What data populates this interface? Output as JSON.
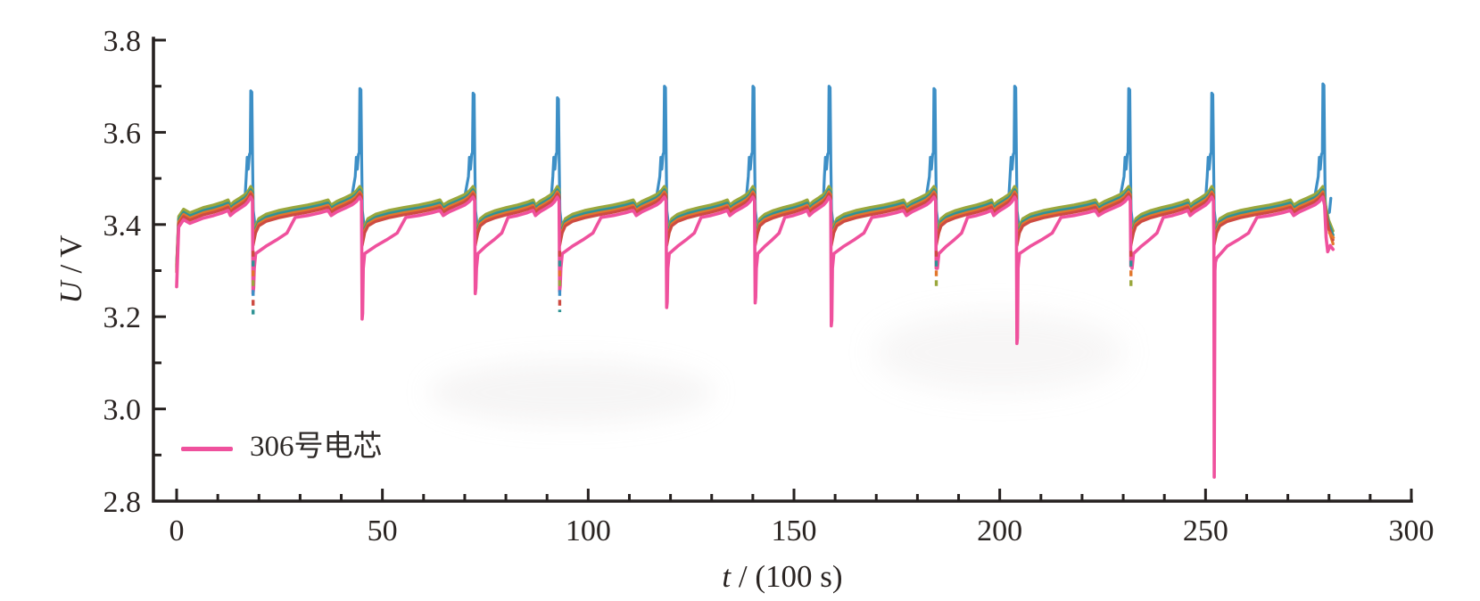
{
  "axes": {
    "ylabel_var": "U",
    "ylabel_rest": " / V",
    "xlabel_var": "t",
    "xlabel_rest": " / (100 s)"
  },
  "legend": {
    "label": "306号电芯"
  },
  "chart_data": {
    "type": "line",
    "title": "",
    "xlabel": "t / (100 s)",
    "ylabel": "U / V",
    "xlim": [
      -6,
      300
    ],
    "ylim": [
      2.8,
      3.8
    ],
    "x_ticks": [
      0,
      50,
      100,
      150,
      200,
      250,
      300
    ],
    "x_minor_step": 10,
    "y_ticks": [
      "2.8",
      "3.0",
      "3.2",
      "3.4",
      "3.6",
      "3.8"
    ],
    "y_minor_step": 0.1,
    "grid": false,
    "axis_color": "#262120",
    "legend": {
      "label": "306号电芯",
      "series": "pink",
      "line_color": "#ef519d",
      "position": "lower-left"
    },
    "series": [
      {
        "key": "blue",
        "color": "#3d8fc6",
        "offset": 0.0065,
        "role": "spiker"
      },
      {
        "key": "olive",
        "color": "#9aa73c",
        "offset": 0.01,
        "role": "bundle"
      },
      {
        "key": "teal",
        "color": "#2f9394",
        "offset": 0.003,
        "role": "bundle"
      },
      {
        "key": "orange",
        "color": "#e2772c",
        "offset": -0.0015,
        "role": "bundle"
      },
      {
        "key": "red",
        "color": "#cd4b42",
        "offset": -0.006,
        "role": "bundle"
      },
      {
        "key": "pink",
        "color": "#ef519d",
        "offset": -0.013,
        "role": "monitored",
        "label": "306号电芯"
      }
    ],
    "waveform": [
      [
        0,
        3.388
      ],
      [
        0.03,
        3.403
      ],
      [
        0.1,
        3.4125
      ],
      [
        0.22,
        3.4205
      ],
      [
        0.36,
        3.427
      ],
      [
        0.5,
        3.4325
      ],
      [
        0.62,
        3.4385
      ],
      [
        0.695,
        3.4435
      ],
      [
        0.725,
        3.4325
      ],
      [
        0.78,
        3.4405
      ],
      [
        0.86,
        3.4485
      ],
      [
        0.925,
        3.4555
      ],
      [
        0.965,
        3.4625
      ],
      [
        1,
        3.4725
      ]
    ],
    "start": {
      "t": 0,
      "v_pink": 3.265,
      "v_bundle": 3.303
    },
    "end": {
      "t": 281
    },
    "cycles": [
      {
        "t": 18,
        "peak": 3.69,
        "dip": 3.205,
        "dashed": true
      },
      {
        "t": 44.5,
        "peak": 3.695,
        "dip": 3.195,
        "dashed": false
      },
      {
        "t": 72,
        "peak": 3.685,
        "dip": 3.25,
        "dashed": false
      },
      {
        "t": 92.5,
        "peak": 3.675,
        "dip": 3.21,
        "dashed": true
      },
      {
        "t": 118.5,
        "peak": 3.7,
        "dip": 3.22,
        "dashed": false
      },
      {
        "t": 140,
        "peak": 3.7,
        "dip": 3.23,
        "dashed": false
      },
      {
        "t": 158.5,
        "peak": 3.7,
        "dip": 3.18,
        "dashed": false
      },
      {
        "t": 184,
        "peak": 3.695,
        "dip": 3.26,
        "dashed": true
      },
      {
        "t": 203.6,
        "peak": 3.7,
        "dip": 3.142,
        "dashed": false
      },
      {
        "t": 231.3,
        "peak": 3.695,
        "dip": 3.265,
        "dashed": true
      },
      {
        "t": 251.5,
        "peak": 3.685,
        "dip": 2.852,
        "dashed": false
      },
      {
        "t": 278.5,
        "peak": 3.705,
        "dip": null,
        "dashed": false
      }
    ],
    "dash_colors": [
      "#cd4b42",
      "#2f9394",
      "#e2772c",
      "#9aa73c",
      "#3d8fc6"
    ],
    "ending": {
      "blue_hook": [
        [
          279.05,
          3.447
        ],
        [
          279.5,
          3.4235
        ],
        [
          280.1,
          3.4265
        ],
        [
          280.45,
          3.457
        ]
      ],
      "bundle_end": {
        "olive": 3.386,
        "teal": 3.377,
        "orange": 3.358,
        "red": 3.367,
        "pink": 3.346
      },
      "orange_dash_tail": [
        [
          280.1,
          3.382
        ],
        [
          281.3,
          3.369
        ]
      ]
    }
  }
}
